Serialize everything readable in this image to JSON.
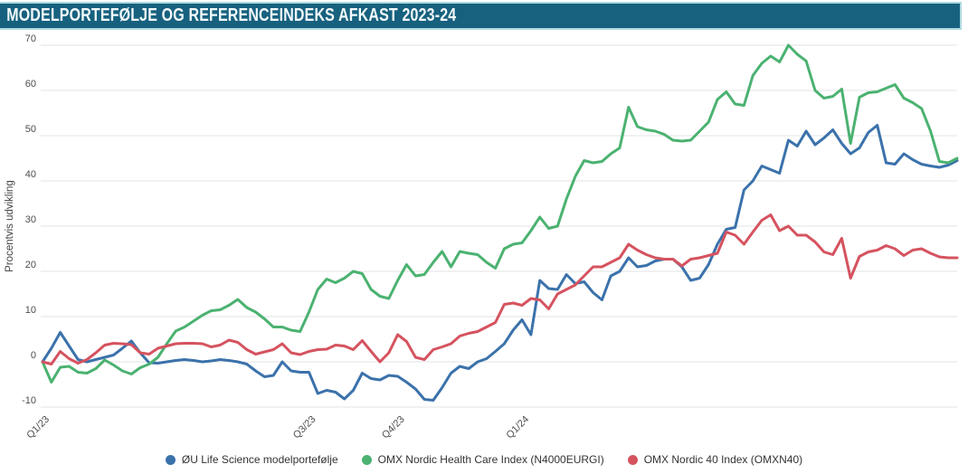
{
  "title_bar": {
    "title": "MODELPORTEFØLJE OG REFERENCEINDEKS AFKAST 2023-24"
  },
  "colors": {
    "banner_bg": "#17617f",
    "banner_edge": "#aed9e0",
    "banner_text": "#f3fafc",
    "grid": "#e3e3e3",
    "axis_text": "#4d4d4d"
  },
  "chart_data": {
    "type": "line",
    "title": "MODELPORTEFØLJE OG REFERENCEINDEKS AFKAST 2023-24",
    "xlabel": "",
    "ylabel": "Procentvis udvikling",
    "ylim": [
      -10,
      70
    ],
    "yticks": [
      70,
      60,
      50,
      40,
      30,
      20,
      10,
      0,
      -10
    ],
    "grid": "horizontal",
    "legend_position": "bottom",
    "x_unit": "weekly points, Q1 2023 – Q4 2024",
    "xticks": [
      {
        "label": "Q1/23",
        "week": 0
      },
      {
        "label": "Q3/23",
        "week": 30
      },
      {
        "label": "Q4/23",
        "week": 40
      },
      {
        "label": "Q1/24",
        "week": 54
      }
    ],
    "series": [
      {
        "name": "ØU Life Science modelportefølje",
        "color": "#3b72ab",
        "values": [
          0,
          3,
          6.5,
          3.5,
          0.5,
          0,
          0.5,
          1,
          1.5,
          3,
          4.6,
          2,
          -0.2,
          -0.3,
          0,
          0.3,
          0.5,
          0.3,
          0,
          0.2,
          0.5,
          0.3,
          0,
          -0.5,
          -2,
          -3.3,
          -3,
          0,
          -2,
          -2.3,
          -2.3,
          -7,
          -6.3,
          -6.7,
          -8.2,
          -6.3,
          -2.5,
          -3.7,
          -4,
          -3,
          -3.2,
          -4.5,
          -6,
          -8.3,
          -8.5,
          -5.7,
          -2.5,
          -1,
          -1.5,
          0,
          0.7,
          2.3,
          4,
          7,
          9.3,
          6,
          18,
          16.2,
          16,
          19.3,
          17.3,
          17.7,
          15.3,
          13.7,
          19,
          20,
          23,
          21,
          21.3,
          22.3,
          22.7,
          22.7,
          21,
          18,
          18.5,
          21.5,
          26,
          29.3,
          29.7,
          38,
          40,
          43.3,
          42.5,
          41.7,
          49,
          47.7,
          51,
          48,
          49.5,
          51.3,
          48.3,
          46,
          47.3,
          50.7,
          52.3,
          44,
          43.7,
          46,
          44.7,
          43.7,
          43.3,
          43,
          43.5,
          44.5
        ]
      },
      {
        "name": "OMX Nordic Health Care Index (N4000EURGI)",
        "color": "#4bb271",
        "values": [
          0,
          -4.5,
          -1.2,
          -1,
          -2.3,
          -2.5,
          -1.5,
          0.4,
          -0.7,
          -2,
          -2.7,
          -1.3,
          -0.5,
          1,
          4,
          6.8,
          7.7,
          9,
          10.3,
          11.3,
          11.5,
          12.5,
          13.8,
          12,
          11,
          9.5,
          7.7,
          7.7,
          7,
          6.7,
          11,
          16,
          18.3,
          17.5,
          18.5,
          20,
          19.5,
          16,
          14.5,
          14,
          18,
          21.5,
          19,
          19.3,
          22,
          24.4,
          21,
          24.4,
          24,
          23.7,
          22,
          20.7,
          25,
          26,
          26.3,
          29,
          32,
          29.5,
          30,
          36,
          41,
          44.5,
          44,
          44.3,
          46,
          47.3,
          56.3,
          52,
          51.3,
          51,
          50.3,
          49,
          48.8,
          49,
          51,
          53,
          58,
          59.7,
          57,
          56.7,
          63.3,
          66,
          67.6,
          66.3,
          70,
          68,
          66.5,
          60,
          58.3,
          58.7,
          60.3,
          48.3,
          58.5,
          59.5,
          59.7,
          60.5,
          61.3,
          58.3,
          57.3,
          56,
          51,
          44.3,
          44,
          45
        ]
      },
      {
        "name": "OMX Nordic 40 Index (OMXN40)",
        "color": "#d5535f",
        "values": [
          0,
          -0.5,
          2.3,
          0.7,
          -0.3,
          0.5,
          2,
          3.7,
          4.1,
          4,
          3.8,
          2,
          1.7,
          3,
          3.5,
          4,
          4.1,
          4.1,
          4,
          3.3,
          3.7,
          4.8,
          4.3,
          2.7,
          1.7,
          2.2,
          2.7,
          4,
          2,
          1.6,
          2.3,
          2.7,
          2.8,
          3.7,
          3.5,
          2.7,
          4.7,
          2.3,
          0,
          2,
          6,
          4.5,
          1,
          0.5,
          2.7,
          3.3,
          4,
          5.7,
          6.3,
          6.7,
          7.7,
          8.7,
          12.7,
          13,
          12.5,
          14,
          13.7,
          11.7,
          15,
          16,
          17,
          19,
          21,
          21,
          22,
          23,
          26,
          24.7,
          23.7,
          23,
          22.7,
          22.7,
          21.2,
          22.7,
          23,
          23.5,
          24,
          28.7,
          28,
          26,
          28.7,
          31.3,
          32.5,
          29,
          30,
          28,
          28,
          26.5,
          24.3,
          23.7,
          27.3,
          18.5,
          23.3,
          24.3,
          24.7,
          25.7,
          25,
          23.5,
          24.7,
          25,
          24,
          23.2,
          23,
          23
        ]
      }
    ]
  }
}
